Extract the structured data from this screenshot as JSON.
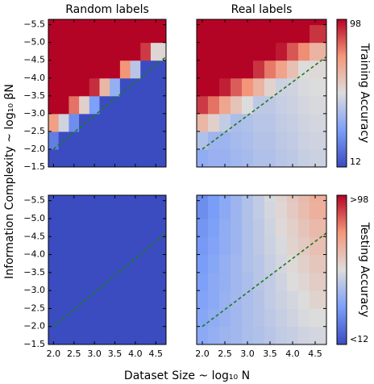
{
  "xlabel": "Dataset Size ~ log₁₀ N",
  "ylabel": "Information Complexity ~ log₁₀ βN",
  "colormap": [
    "#3b4cc0",
    "#7b9ff9",
    "#dddcdc",
    "#f4987a",
    "#b40426"
  ],
  "chart_data": [
    {
      "type": "heatmap",
      "title": "Random labels",
      "xlim": [
        1.875,
        4.75
      ],
      "ylim": [
        -1.5,
        -5.65
      ],
      "zlim": [
        12,
        98
      ],
      "yticks": [
        {
          "value": -5.5,
          "label": "−5.5"
        },
        {
          "value": -5,
          "label": "−5.0"
        },
        {
          "value": -4.5,
          "label": "−4.5"
        },
        {
          "value": -4,
          "label": "−4.0"
        },
        {
          "value": -3.5,
          "label": "−3.5"
        },
        {
          "value": -3,
          "label": "−3.0"
        },
        {
          "value": -2.5,
          "label": "−2.5"
        },
        {
          "value": -2,
          "label": "−2.0"
        },
        {
          "value": -1.5,
          "label": "−1.5"
        }
      ],
      "xbins": [
        1.875,
        2.125,
        2.375,
        2.625,
        2.875,
        3.125,
        3.375,
        3.625,
        3.875,
        4.125,
        4.375,
        4.75
      ],
      "ybins": [
        -1.5,
        -2.0,
        -2.5,
        -3.0,
        -3.5,
        -4.0,
        -4.5,
        -5.0,
        -5.5,
        -5.65
      ],
      "z": [
        [
          12,
          12,
          12,
          12,
          12,
          12,
          12,
          12,
          12,
          12,
          12
        ],
        [
          25,
          12,
          12,
          12,
          12,
          12,
          12,
          12,
          12,
          12,
          12
        ],
        [
          74,
          52,
          29,
          12,
          12,
          12,
          12,
          12,
          12,
          12,
          12
        ],
        [
          98,
          98,
          82,
          59,
          34,
          12,
          12,
          12,
          12,
          12,
          12
        ],
        [
          98,
          98,
          98,
          98,
          92,
          67,
          39,
          12,
          12,
          12,
          12
        ],
        [
          98,
          98,
          98,
          98,
          98,
          98,
          98,
          77,
          47,
          12,
          12
        ],
        [
          98,
          98,
          98,
          98,
          98,
          98,
          98,
          98,
          98,
          90,
          57
        ],
        [
          98,
          98,
          98,
          98,
          98,
          98,
          98,
          98,
          98,
          98,
          98
        ],
        [
          98,
          98,
          98,
          98,
          98,
          98,
          98,
          98,
          98,
          98,
          98
        ]
      ],
      "threshold": {
        "x": [
          2.0,
          4.75
        ],
        "y": [
          -2.0,
          -4.6
        ],
        "color": "#1f7a1f"
      }
    },
    {
      "type": "heatmap",
      "title": "Real labels",
      "xlim": [
        1.875,
        4.75
      ],
      "ylim": [
        -1.5,
        -5.65
      ],
      "zlim": [
        12,
        98
      ],
      "xbins": [
        1.875,
        2.125,
        2.375,
        2.625,
        2.875,
        3.125,
        3.375,
        3.625,
        3.875,
        4.125,
        4.375,
        4.75
      ],
      "ybins": [
        -1.5,
        -2.0,
        -2.5,
        -3.0,
        -3.5,
        -4.0,
        -4.5,
        -5.0,
        -5.5,
        -5.65
      ],
      "z": [
        [
          38,
          40,
          40,
          42,
          43,
          45,
          45,
          47,
          48,
          50,
          51
        ],
        [
          45,
          41,
          41,
          43,
          44,
          46,
          46,
          48,
          49,
          51,
          52
        ],
        [
          67,
          59,
          49,
          44,
          45,
          47,
          47,
          49,
          50,
          52,
          53
        ],
        [
          90,
          82,
          72,
          63,
          55,
          48,
          48,
          50,
          51,
          53,
          54
        ],
        [
          98,
          98,
          94,
          85,
          77,
          68,
          58,
          51,
          52,
          54,
          55
        ],
        [
          98,
          98,
          98,
          98,
          98,
          91,
          81,
          73,
          64,
          55,
          56
        ],
        [
          98,
          98,
          98,
          98,
          98,
          98,
          98,
          95,
          86,
          78,
          68
        ],
        [
          98,
          98,
          98,
          98,
          98,
          98,
          98,
          98,
          98,
          98,
          91
        ],
        [
          98,
          98,
          98,
          98,
          98,
          98,
          98,
          98,
          98,
          98,
          98
        ]
      ],
      "threshold": {
        "x": [
          2.0,
          4.75
        ],
        "y": [
          -2.0,
          -4.6
        ],
        "color": "#1f7a1f"
      },
      "colorbar": {
        "label": "Training Accuracy",
        "lim": [
          12,
          98
        ],
        "ticks": [
          98,
          12
        ]
      }
    },
    {
      "type": "heatmap",
      "xlim": [
        1.875,
        4.75
      ],
      "ylim": [
        -1.5,
        -5.65
      ],
      "zlim": [
        12,
        98
      ],
      "xticks": [
        {
          "value": 2,
          "label": "2.0"
        },
        2.5,
        {
          "value": 3,
          "label": "3.0"
        },
        3.5,
        {
          "value": 4,
          "label": "4.0"
        },
        4.5
      ],
      "yticks": [
        {
          "value": -5.5,
          "label": "−5.5"
        },
        {
          "value": -5,
          "label": "−5.0"
        },
        {
          "value": -4.5,
          "label": "−4.5"
        },
        {
          "value": -4,
          "label": "−4.0"
        },
        {
          "value": -3.5,
          "label": "−3.5"
        },
        {
          "value": -3,
          "label": "−3.0"
        },
        {
          "value": -2.5,
          "label": "−2.5"
        },
        {
          "value": -2,
          "label": "−2.0"
        },
        {
          "value": -1.5,
          "label": "−1.5"
        }
      ],
      "xbins": [
        1.875,
        2.125,
        2.375,
        2.625,
        2.875,
        3.125,
        3.375,
        3.625,
        3.875,
        4.125,
        4.375,
        4.75
      ],
      "ybins": [
        -1.5,
        -2.0,
        -2.5,
        -3.0,
        -3.5,
        -4.0,
        -4.5,
        -5.0,
        -5.5,
        -5.65
      ],
      "z": [
        [
          12,
          12,
          12,
          12,
          12,
          12,
          12,
          12,
          12,
          12,
          12
        ],
        [
          12,
          12,
          12,
          12,
          12,
          12,
          12,
          12,
          12,
          12,
          12
        ],
        [
          12,
          12,
          12,
          12,
          12,
          12,
          12,
          12,
          12,
          12,
          12
        ],
        [
          12,
          12,
          12,
          12,
          12,
          12,
          12,
          12,
          12,
          12,
          12
        ],
        [
          12,
          12,
          12,
          12,
          12,
          12,
          12,
          12,
          12,
          12,
          12
        ],
        [
          12,
          12,
          12,
          12,
          12,
          12,
          12,
          12,
          12,
          12,
          12
        ],
        [
          12,
          12,
          12,
          12,
          12,
          12,
          12,
          12,
          12,
          12,
          12
        ],
        [
          12,
          12,
          12,
          12,
          12,
          12,
          12,
          12,
          12,
          12,
          12
        ],
        [
          12,
          12,
          12,
          12,
          12,
          12,
          12,
          12,
          12,
          12,
          12
        ]
      ],
      "threshold": {
        "x": [
          2.0,
          4.75
        ],
        "y": [
          -2.0,
          -4.6
        ],
        "color": "#1f7a1f"
      }
    },
    {
      "type": "heatmap",
      "xlim": [
        1.875,
        4.75
      ],
      "ylim": [
        -1.5,
        -5.65
      ],
      "zlim": [
        12,
        98
      ],
      "xticks": [
        {
          "value": 2,
          "label": "2.0"
        },
        2.5,
        {
          "value": 3,
          "label": "3.0"
        },
        3.5,
        {
          "value": 4,
          "label": "4.0"
        },
        4.5
      ],
      "xbins": [
        1.875,
        2.125,
        2.375,
        2.625,
        2.875,
        3.125,
        3.375,
        3.625,
        3.875,
        4.125,
        4.375,
        4.75
      ],
      "ybins": [
        -1.5,
        -2.0,
        -2.5,
        -3.0,
        -3.5,
        -4.0,
        -4.5,
        -5.0,
        -5.5,
        -5.65
      ],
      "z": [
        [
          37,
          39,
          41,
          42,
          44,
          45,
          47,
          49,
          50,
          52,
          53
        ],
        [
          36,
          38,
          40,
          42,
          44,
          46,
          48,
          50,
          52,
          54,
          55
        ],
        [
          35,
          37,
          40,
          42,
          44,
          46,
          49,
          51,
          53,
          55,
          58
        ],
        [
          34,
          37,
          39,
          42,
          44,
          47,
          49,
          52,
          55,
          57,
          60
        ],
        [
          33,
          36,
          39,
          42,
          45,
          47,
          50,
          53,
          56,
          59,
          62
        ],
        [
          32,
          35,
          38,
          41,
          45,
          48,
          51,
          54,
          58,
          61,
          64
        ],
        [
          31,
          34,
          38,
          41,
          45,
          48,
          52,
          56,
          59,
          63,
          66
        ],
        [
          29,
          33,
          37,
          41,
          45,
          49,
          53,
          57,
          61,
          65,
          69
        ],
        [
          29,
          33,
          37,
          41,
          45,
          49,
          54,
          58,
          62,
          66,
          70
        ]
      ],
      "threshold": {
        "x": [
          2.0,
          4.75
        ],
        "y": [
          -2.0,
          -4.6
        ],
        "color": "#1f7a1f"
      },
      "colorbar": {
        "label": "Testing Accuracy",
        "lim": [
          12,
          98
        ],
        "ticks": [
          {
            "value": 98,
            "label": ">98"
          },
          {
            "value": 12,
            "label": "<12"
          }
        ]
      }
    }
  ]
}
